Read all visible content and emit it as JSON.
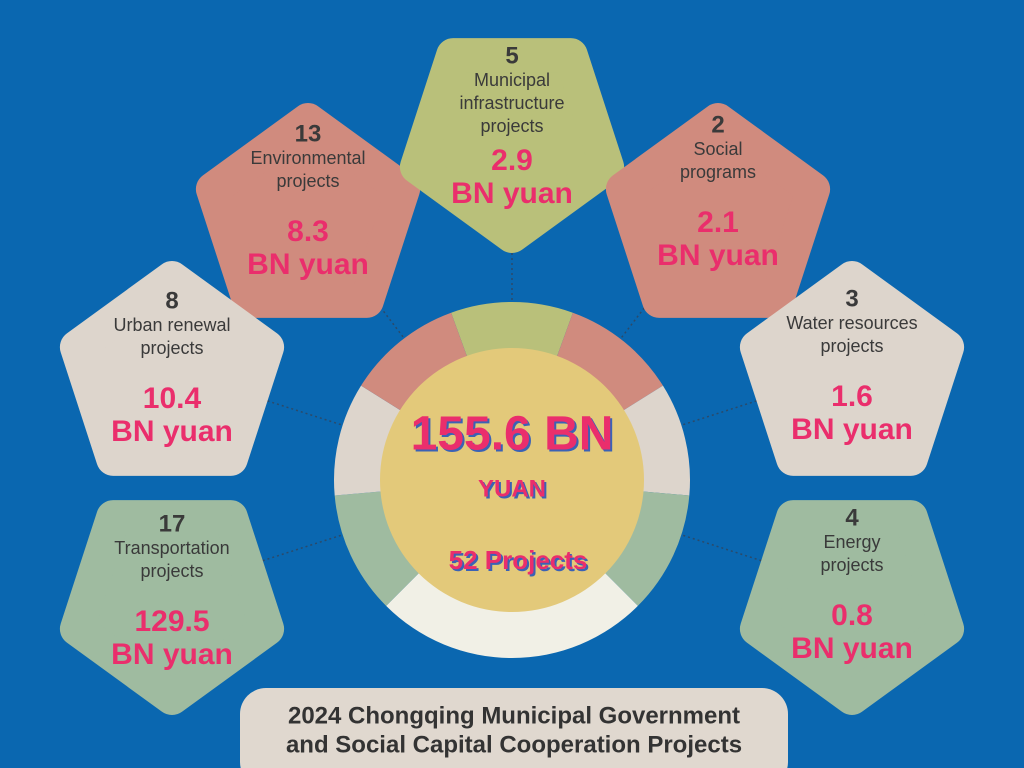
{
  "center": {
    "amount": "155.6 BN",
    "unit": "YUAN",
    "projects": "52 Projects"
  },
  "items": [
    {
      "count": 13,
      "label_lines": [
        "Environmental",
        "projects"
      ],
      "value": 8.3,
      "unit": "BN yuan"
    },
    {
      "count": 5,
      "label_lines": [
        "Municipal",
        "infrastructure",
        "projects"
      ],
      "value": 2.9,
      "unit": "BN yuan"
    },
    {
      "count": 2,
      "label_lines": [
        "Social",
        "programs"
      ],
      "value": 2.1,
      "unit": "BN yuan"
    },
    {
      "count": 8,
      "label_lines": [
        "Urban renewal",
        "projects"
      ],
      "value": 10.4,
      "unit": "BN yuan"
    },
    {
      "count": 3,
      "label_lines": [
        "Water resources",
        "projects"
      ],
      "value": 1.6,
      "unit": "BN yuan"
    },
    {
      "count": 17,
      "label_lines": [
        "Transportation",
        "projects"
      ],
      "value": 129.5,
      "unit": "BN yuan"
    },
    {
      "count": 4,
      "label_lines": [
        "Energy",
        "projects"
      ],
      "value": 0.8,
      "unit": "BN yuan"
    }
  ],
  "title_lines": [
    "2024 Chongqing Municipal Government",
    "and Social Capital Cooperation Projects"
  ]
}
